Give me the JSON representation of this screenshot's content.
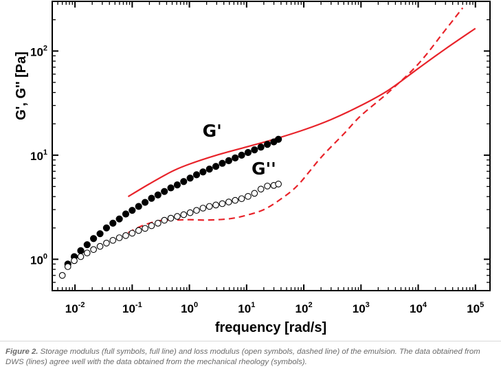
{
  "chart_data": {
    "type": "line+scatter",
    "x_scale": "log",
    "y_scale": "log",
    "xlabel": "frequency [rad/s]",
    "ylabel": "G', G'' [Pa]",
    "xlim": [
      0.004,
      180000
    ],
    "ylim": [
      0.5,
      300
    ],
    "x_ticks": [
      {
        "value": 0.01,
        "base": "10",
        "exp": "-2"
      },
      {
        "value": 0.1,
        "base": "10",
        "exp": "-1"
      },
      {
        "value": 1,
        "base": "10",
        "exp": "0"
      },
      {
        "value": 10,
        "base": "10",
        "exp": "1"
      },
      {
        "value": 100,
        "base": "10",
        "exp": "2"
      },
      {
        "value": 1000,
        "base": "10",
        "exp": "3"
      },
      {
        "value": 10000,
        "base": "10",
        "exp": "4"
      },
      {
        "value": 100000,
        "base": "10",
        "exp": "5"
      }
    ],
    "y_ticks": [
      {
        "value": 1,
        "base": "10",
        "exp": "0"
      },
      {
        "value": 10,
        "base": "10",
        "exp": "1"
      },
      {
        "value": 100,
        "base": "10",
        "exp": "2"
      }
    ],
    "annotations": [
      {
        "text": "G'",
        "x": 2.5,
        "y": 15
      },
      {
        "text": "G''",
        "x": 20,
        "y": 6.5
      }
    ],
    "series": [
      {
        "name": "G' (mechanical rheology, full symbols)",
        "kind": "scatter",
        "marker": "filled-circle",
        "color": "#000000",
        "x": [
          0.0075,
          0.0097,
          0.0126,
          0.0163,
          0.0211,
          0.0274,
          0.0355,
          0.046,
          0.0596,
          0.0772,
          0.1,
          0.1296,
          0.1679,
          0.2176,
          0.282,
          0.3653,
          0.4734,
          0.6134,
          0.7948,
          1.03,
          1.334,
          1.729,
          2.24,
          2.903,
          3.761,
          4.874,
          6.315,
          8.183,
          10.6,
          13.74,
          17.8,
          23.07,
          29.89,
          36.0
        ],
        "y": [
          0.9,
          1.06,
          1.21,
          1.38,
          1.58,
          1.76,
          2.0,
          2.22,
          2.44,
          2.72,
          2.95,
          3.22,
          3.52,
          3.85,
          4.15,
          4.48,
          4.85,
          5.18,
          5.58,
          6.02,
          6.48,
          6.9,
          7.35,
          7.8,
          8.35,
          8.85,
          9.4,
          10.0,
          10.6,
          11.25,
          11.95,
          12.7,
          13.4,
          14.2
        ]
      },
      {
        "name": "G'' (mechanical rheology, open symbols)",
        "kind": "scatter",
        "marker": "open-circle",
        "color": "#000000",
        "x": [
          0.006,
          0.0075,
          0.0097,
          0.0126,
          0.0163,
          0.0211,
          0.0274,
          0.0355,
          0.046,
          0.0596,
          0.0772,
          0.1,
          0.1296,
          0.1679,
          0.2176,
          0.282,
          0.3653,
          0.4734,
          0.6134,
          0.7948,
          1.03,
          1.334,
          1.729,
          2.24,
          2.903,
          3.761,
          4.874,
          6.315,
          8.183,
          10.6,
          13.74,
          17.8,
          23.07,
          29.89,
          36.0
        ],
        "y": [
          0.7,
          0.85,
          0.97,
          1.06,
          1.15,
          1.24,
          1.33,
          1.43,
          1.52,
          1.61,
          1.69,
          1.78,
          1.89,
          1.98,
          2.1,
          2.22,
          2.37,
          2.48,
          2.58,
          2.68,
          2.8,
          2.95,
          3.1,
          3.22,
          3.32,
          3.42,
          3.55,
          3.68,
          3.82,
          4.02,
          4.3,
          4.72,
          5.05,
          5.12,
          5.28
        ]
      },
      {
        "name": "G' (DWS, full line)",
        "kind": "line",
        "dash": "solid",
        "color": "#e8232a",
        "x": [
          0.085,
          0.2,
          0.5,
          1,
          3,
          10,
          30,
          100,
          300,
          1000,
          3000,
          10000,
          30000,
          100000
        ],
        "y": [
          4.0,
          5.3,
          7.0,
          8.2,
          10.0,
          12.0,
          14.2,
          17.5,
          22.0,
          30.0,
          42.0,
          68.0,
          105.0,
          165.0
        ]
      },
      {
        "name": "G'' (DWS, dashed line)",
        "kind": "line",
        "dash": "dashed",
        "color": "#e8232a",
        "x": [
          0.085,
          0.15,
          0.3,
          0.6,
          1,
          2,
          5,
          10,
          20,
          40,
          80,
          200,
          500,
          1000,
          3000,
          10000,
          30000,
          60000
        ],
        "y": [
          1.8,
          2.1,
          2.35,
          2.38,
          2.4,
          2.38,
          2.45,
          2.65,
          3.0,
          3.8,
          5.2,
          9.5,
          16.0,
          24.0,
          40.0,
          75.0,
          160.0,
          260.0
        ]
      }
    ]
  },
  "caption": {
    "label": "Figure 2.",
    "text": " Storage modulus (full symbols, full line) and loss modulus (open symbols, dashed line) of the emulsion. The data obtained from DWS (lines) agree well with the data obtained from the mechanical rheology (symbols)."
  }
}
